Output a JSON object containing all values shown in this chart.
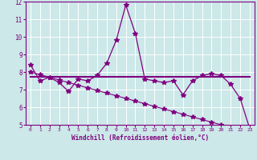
{
  "xlabel": "Windchill (Refroidissement éolien,°C)",
  "x": [
    0,
    1,
    2,
    3,
    4,
    5,
    6,
    7,
    8,
    9,
    10,
    11,
    12,
    13,
    14,
    15,
    16,
    17,
    18,
    19,
    20,
    21,
    22,
    23
  ],
  "series1": [
    8.4,
    7.5,
    7.7,
    7.4,
    6.9,
    7.6,
    7.5,
    7.8,
    8.5,
    9.8,
    11.8,
    10.2,
    7.6,
    7.5,
    7.4,
    7.5,
    6.7,
    7.5,
    7.8,
    7.9,
    7.8,
    7.3,
    6.5,
    4.8
  ],
  "series2": [
    7.75,
    7.75,
    7.75,
    7.75,
    7.75,
    7.75,
    7.75,
    7.75,
    7.75,
    7.75,
    7.75,
    7.75,
    7.75,
    7.75,
    7.75,
    7.75,
    7.75,
    7.75,
    7.75,
    7.75,
    7.75,
    7.75,
    7.75,
    7.75
  ],
  "series3": [
    8.0,
    7.85,
    7.7,
    7.55,
    7.4,
    7.25,
    7.1,
    6.95,
    6.8,
    6.65,
    6.5,
    6.35,
    6.2,
    6.05,
    5.9,
    5.75,
    5.6,
    5.45,
    5.3,
    5.15,
    5.0,
    4.85,
    4.7,
    4.55
  ],
  "ylim": [
    5,
    12
  ],
  "xlim_min": -0.5,
  "xlim_max": 23.5,
  "yticks": [
    5,
    6,
    7,
    8,
    9,
    10,
    11,
    12
  ],
  "xticks": [
    0,
    1,
    2,
    3,
    4,
    5,
    6,
    7,
    8,
    9,
    10,
    11,
    12,
    13,
    14,
    15,
    16,
    17,
    18,
    19,
    20,
    21,
    22,
    23
  ],
  "bg_color": "#cce8e8",
  "grid_color": "#ffffff",
  "line_color": "#800080",
  "tick_label_color": "#800080",
  "xlabel_color": "#800080",
  "marker": "*",
  "markersize": 4
}
